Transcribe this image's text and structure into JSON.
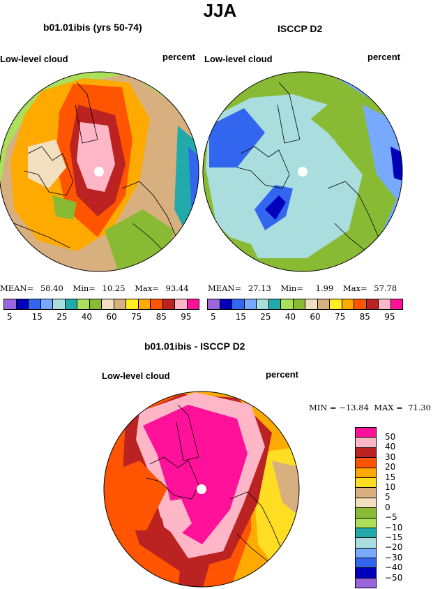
{
  "title": "JJA",
  "panels": [
    {
      "title": "b01.01ibis (yrs 50-74)",
      "left_label": "Low-level cloud",
      "right_label": "percent",
      "stats": {
        "mean_label": "MEAN=",
        "mean": "58.40",
        "min_label": "Min=",
        "min": "10.25",
        "max_label": "Max=",
        "max": "93.44"
      }
    },
    {
      "title": "ISCCP D2",
      "left_label": "Low-level cloud",
      "right_label": "percent",
      "stats": {
        "mean_label": "MEAN=",
        "mean": "27.13",
        "min_label": "Min=",
        "min": "1.99",
        "max_label": "Max=",
        "max": "57.78"
      }
    }
  ],
  "levels_colorbar": {
    "colors": [
      "#9966dd",
      "#0000bb",
      "#3366ee",
      "#77aaff",
      "#aadddd",
      "#22aaaa",
      "#aae05a",
      "#88bb33",
      "#f2dfc0",
      "#d8b080",
      "#ffee22",
      "#ffaa00",
      "#ff5500",
      "#bb2222",
      "#ffb6c6",
      "#ff1199"
    ],
    "tick_labels": [
      "5",
      "15",
      "25",
      "40",
      "60",
      "75",
      "85",
      "95"
    ]
  },
  "difference": {
    "title": "b01.01ibis - ISCCP D2",
    "left_label": "Low-level cloud",
    "right_label": "percent",
    "stats": "MIN = −13.84  MAX =  71.30",
    "colorbar": {
      "colors": [
        "#ff1199",
        "#ffb6c6",
        "#bb2222",
        "#ff5500",
        "#ffaa00",
        "#ffdd22",
        "#d8b080",
        "#f2dfc0",
        "#88bb33",
        "#aae05a",
        "#22aaaa",
        "#aadddd",
        "#77aaff",
        "#3366ee",
        "#0000bb",
        "#9966dd"
      ],
      "tick_labels": [
        "50",
        "40",
        "30",
        "20",
        "15",
        "10",
        "5",
        "0",
        "−5",
        "−10",
        "−15",
        "−20",
        "−30",
        "−40",
        "−50"
      ]
    }
  }
}
